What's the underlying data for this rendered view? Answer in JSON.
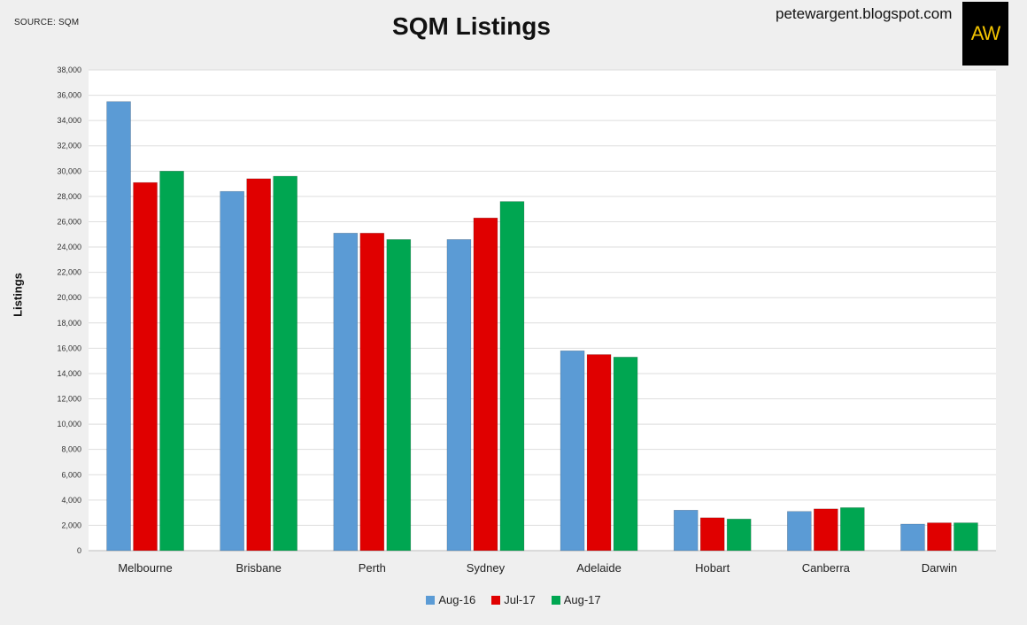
{
  "source": "SOURCE: SQM",
  "website": "petewargent.blogspot.com",
  "logo": "AW",
  "chart_data": {
    "type": "bar",
    "title": "SQM Listings",
    "xlabel": "",
    "ylabel": "Listings",
    "ylim": [
      0,
      38000
    ],
    "yticks": [
      0,
      2000,
      4000,
      6000,
      8000,
      10000,
      12000,
      14000,
      16000,
      18000,
      20000,
      22000,
      24000,
      26000,
      28000,
      30000,
      32000,
      34000,
      36000,
      38000
    ],
    "ytick_labels": [
      "0",
      "2,000",
      "4,000",
      "6,000",
      "8,000",
      "10,000",
      "12,000",
      "14,000",
      "16,000",
      "18,000",
      "20,000",
      "22,000",
      "24,000",
      "26,000",
      "28,000",
      "30,000",
      "32,000",
      "34,000",
      "36,000",
      "38,000"
    ],
    "categories": [
      "Melbourne",
      "Brisbane",
      "Perth",
      "Sydney",
      "Adelaide",
      "Hobart",
      "Canberra",
      "Darwin"
    ],
    "series": [
      {
        "name": "Aug-16",
        "color": "#5b9bd5",
        "values": [
          35500,
          28400,
          25100,
          24600,
          15800,
          3200,
          3100,
          2100
        ]
      },
      {
        "name": "Jul-17",
        "color": "#e00000",
        "values": [
          29100,
          29400,
          25100,
          26300,
          15500,
          2600,
          3300,
          2200
        ]
      },
      {
        "name": "Aug-17",
        "color": "#00a651",
        "values": [
          30000,
          29600,
          24600,
          27600,
          15300,
          2500,
          3400,
          2200
        ]
      }
    ],
    "grid": true,
    "legend_position": "bottom"
  }
}
